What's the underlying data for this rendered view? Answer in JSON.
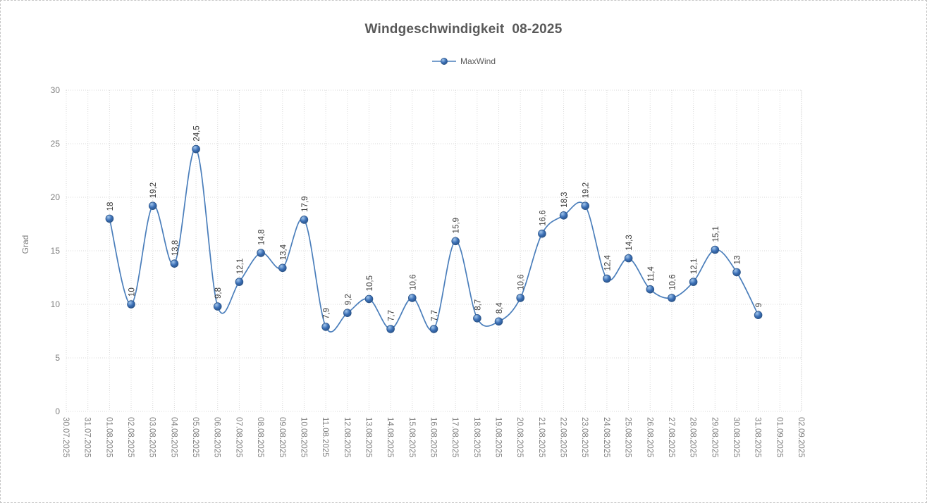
{
  "chart": {
    "title": "Windgeschwindigkeit  08-2025",
    "legend_label": "MaxWind",
    "y_axis_title": "Grad"
  },
  "chart_data": {
    "type": "line",
    "title": "Windgeschwindigkeit 08-2025",
    "xlabel": "",
    "ylabel": "Grad",
    "legend_position": "top",
    "smooth_line": true,
    "grid": true,
    "ylim": [
      0,
      30
    ],
    "ytick_step": 5,
    "yticks": [
      "0",
      "5",
      "10",
      "15",
      "20",
      "25",
      "30"
    ],
    "categories": [
      "30.07.2025",
      "31.07.2025",
      "01.08.2025",
      "02.08.2025",
      "03.08.2025",
      "04.08.2025",
      "05.08.2025",
      "06.08.2025",
      "07.08.2025",
      "08.08.2025",
      "09.08.2025",
      "10.08.2025",
      "11.08.2025",
      "12.08.2025",
      "13.08.2025",
      "14.08.2025",
      "15.08.2025",
      "16.08.2025",
      "17.08.2025",
      "18.08.2025",
      "19.08.2025",
      "20.08.2025",
      "21.08.2025",
      "22.08.2025",
      "23.08.2025",
      "24.08.2025",
      "25.08.2025",
      "26.08.2025",
      "27.08.2025",
      "28.08.2025",
      "29.08.2025",
      "30.08.2025",
      "31.08.2025",
      "01.09.2025",
      "02.09.2025"
    ],
    "series": [
      {
        "name": "MaxWind",
        "start_category_index": 2,
        "values": [
          18,
          10,
          19.2,
          13.8,
          24.5,
          9.8,
          12.1,
          14.8,
          13.4,
          17.9,
          7.9,
          9.2,
          10.5,
          7.7,
          10.6,
          7.7,
          15.9,
          8.7,
          8.4,
          10.6,
          16.6,
          18.3,
          19.2,
          12.4,
          14.3,
          11.4,
          10.6,
          12.1,
          15.1,
          13,
          9
        ],
        "labels": [
          "18",
          "10",
          "19,2",
          "13,8",
          "24,5",
          "9,8",
          "12,1",
          "14,8",
          "13,4",
          "17,9",
          "7,9",
          "9,2",
          "10,5",
          "7,7",
          "10,6",
          "7,7",
          "15,9",
          "8,7",
          "8,4",
          "10,6",
          "16,6",
          "18,3",
          "19,2",
          "12,4",
          "14,3",
          "11,4",
          "10,6",
          "12,1",
          "15,1",
          "13",
          "9"
        ]
      }
    ],
    "colors": {
      "line": "#4a7ebb",
      "marker_fill": "#3b6fb6",
      "marker_stroke": "#2b5488",
      "marker_highlight": "#a3c7ec",
      "gridline": "#d9d9d9",
      "plot_border": "#d9d9d9",
      "axis_text": "#7f7f7f",
      "data_label_text": "#3a3a3a",
      "title_text": "#595959"
    }
  }
}
